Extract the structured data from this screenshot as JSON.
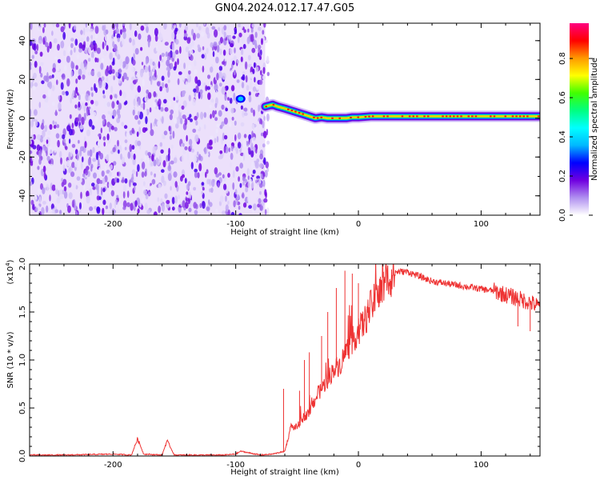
{
  "title": "GN04.2024.012.17.47.G05",
  "chart_data": [
    {
      "type": "heatmap",
      "xlabel": "Height of straight line (km)",
      "ylabel": "Frequency (Hz)",
      "xlim": [
        -268,
        148
      ],
      "ylim": [
        -50,
        49
      ],
      "x_ticks": [
        -200,
        -100,
        0,
        100
      ],
      "x_tick_labels": [
        "-200",
        "-100",
        "0",
        "100"
      ],
      "y_ticks": [
        -40,
        -20,
        0,
        20,
        40
      ],
      "y_tick_labels": [
        "-40",
        "-20",
        "0",
        "20",
        "40"
      ],
      "noise_region_x": [
        -268,
        -76
      ],
      "signal_track": {
        "x": [
          -76,
          -70,
          -66,
          -60,
          -55,
          -50,
          -45,
          -40,
          -35,
          -30,
          -25,
          -20,
          -15,
          -10,
          -5,
          0,
          10,
          20,
          30,
          40,
          50,
          60,
          70,
          80,
          90,
          100,
          110,
          120,
          130,
          140,
          148
        ],
        "frequency": [
          6,
          7,
          6,
          5,
          4,
          3,
          2,
          1,
          0,
          0.5,
          0,
          0,
          0,
          0,
          0.5,
          0.5,
          1,
          1,
          1,
          1,
          1,
          1,
          1,
          1,
          1,
          1,
          1,
          1,
          1,
          1,
          1
        ]
      },
      "isolated_spot": {
        "x": -96,
        "frequency": 10
      },
      "grid": false
    },
    {
      "type": "line",
      "xlabel": "Height of straight line (km)",
      "ylabel": "SNR (10 * v/v)",
      "y_multiplier_label": "(x10",
      "y_multiplier_exp": "4",
      "y_multiplier_close": ")",
      "xlim": [
        -268,
        148
      ],
      "ylim": [
        0,
        2.0
      ],
      "x_ticks": [
        -200,
        -100,
        0,
        100
      ],
      "x_tick_labels": [
        "-200",
        "-100",
        "0",
        "100"
      ],
      "y_ticks": [
        0,
        0.5,
        1.0,
        1.5,
        2.0
      ],
      "y_tick_labels": [
        "0.0",
        "0.5",
        "1.0",
        "1.5",
        "2.0"
      ],
      "series": [
        {
          "color": "#ee3333",
          "x": [
            -268,
            -240,
            -200,
            -185,
            -180,
            -175,
            -160,
            -156,
            -150,
            -110,
            -100,
            -96,
            -80,
            -70,
            -60,
            -55,
            -50,
            -45,
            -40,
            -35,
            -30,
            -25,
            -20,
            -15,
            -10,
            -5,
            0,
            5,
            10,
            15,
            20,
            25,
            30,
            40,
            50,
            60,
            70,
            80,
            90,
            100,
            110,
            120,
            130,
            140,
            148
          ],
          "y": [
            0.01,
            0.01,
            0.02,
            0.01,
            0.18,
            0.02,
            0.01,
            0.16,
            0.01,
            0.01,
            0.02,
            0.05,
            0.01,
            0.02,
            0.05,
            0.3,
            0.3,
            0.4,
            0.45,
            0.6,
            0.7,
            0.8,
            0.9,
            0.95,
            1.1,
            1.2,
            1.3,
            1.4,
            1.55,
            1.65,
            1.75,
            1.85,
            1.92,
            1.92,
            1.87,
            1.82,
            1.8,
            1.78,
            1.76,
            1.74,
            1.72,
            1.68,
            1.64,
            1.6,
            1.55
          ],
          "spikes": [
            {
              "x": -61,
              "y": 0.7
            },
            {
              "x": -48,
              "y": 0.68
            },
            {
              "x": -44,
              "y": 1.0
            },
            {
              "x": -40,
              "y": 1.08
            },
            {
              "x": -30,
              "y": 1.25
            },
            {
              "x": -25,
              "y": 1.5
            },
            {
              "x": -18,
              "y": 1.75
            },
            {
              "x": -11,
              "y": 1.93
            },
            {
              "x": -5,
              "y": 1.9
            },
            {
              "x": 0,
              "y": 1.8
            },
            {
              "x": 130,
              "y": 1.35
            },
            {
              "x": 140,
              "y": 1.3
            }
          ]
        }
      ],
      "grid": false
    }
  ],
  "colorbar": {
    "label": "Normalized spectral amplitude",
    "ticks": [
      0.0,
      0.2,
      0.4,
      0.6,
      0.8
    ],
    "tick_labels": [
      "0.0",
      "0.2",
      "0.4",
      "0.6",
      "0.8"
    ],
    "range": [
      0,
      0.98
    ],
    "colormap_stops": [
      "#ffffff",
      "#b090f0",
      "#7000e0",
      "#0000ff",
      "#00b8ff",
      "#00ffff",
      "#00ff80",
      "#40ff00",
      "#ffff00",
      "#ff9900",
      "#ff0000",
      "#ff0080"
    ]
  }
}
